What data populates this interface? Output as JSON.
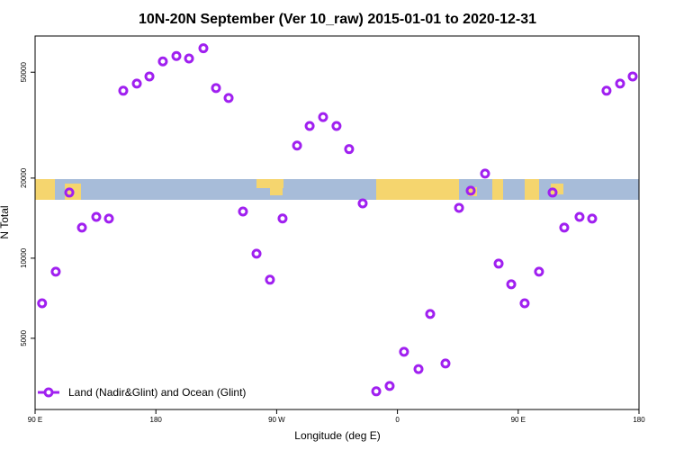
{
  "chart_data": {
    "type": "scatter",
    "title": "10N-20N September (Ver 10_raw)   2015-01-01 to 2020-12-31",
    "x_label": "Longitude (deg E)",
    "y_label": "N Total",
    "xlim": [
      90,
      540
    ],
    "xticks": [
      {
        "value": 90,
        "label": "90 E"
      },
      180,
      {
        "value": 270,
        "label": "90 W"
      },
      {
        "value": 360,
        "label": "0"
      },
      {
        "value": 450,
        "label": "90 E"
      },
      {
        "value": 540,
        "label": "180"
      }
    ],
    "ylim": [
      2700,
      68400
    ],
    "y_log": true,
    "yticks": [
      5000,
      10000,
      20000,
      50000
    ],
    "legend": "bottom-left",
    "series": [
      {
        "name": "Land (Nadir&Glint) and Ocean (Glint)",
        "color": "#a020f0",
        "x": [
          95.2,
          105.4,
          115.5,
          124.9,
          135.6,
          145.0,
          155.7,
          165.8,
          175.2,
          185.2,
          195.3,
          204.7,
          215.4,
          224.8,
          234.2,
          244.9,
          255.0,
          265.0,
          274.4,
          285.2,
          294.6,
          304.6,
          314.6,
          324.0,
          334.1,
          344.2,
          354.2,
          364.9,
          375.7,
          384.4,
          395.8,
          405.9,
          414.6,
          425.3,
          435.4,
          444.8,
          454.8,
          465.5,
          475.6,
          484.3,
          495.7,
          505.1,
          515.8,
          525.9,
          535.3
        ],
        "values": [
          6770,
          8900,
          17650,
          13030,
          14300,
          14090,
          42600,
          45300,
          48200,
          54900,
          57500,
          56300,
          61500,
          43600,
          40000,
          14980,
          10400,
          8300,
          14100,
          26500,
          31400,
          33900,
          31400,
          25700,
          16070,
          3160,
          3310,
          4450,
          3830,
          6170,
          4020,
          15460,
          17930,
          20800,
          9540,
          7980,
          6770,
          8900,
          17650,
          13030,
          14300,
          14090,
          42600,
          45300,
          48200
        ]
      }
    ]
  }
}
